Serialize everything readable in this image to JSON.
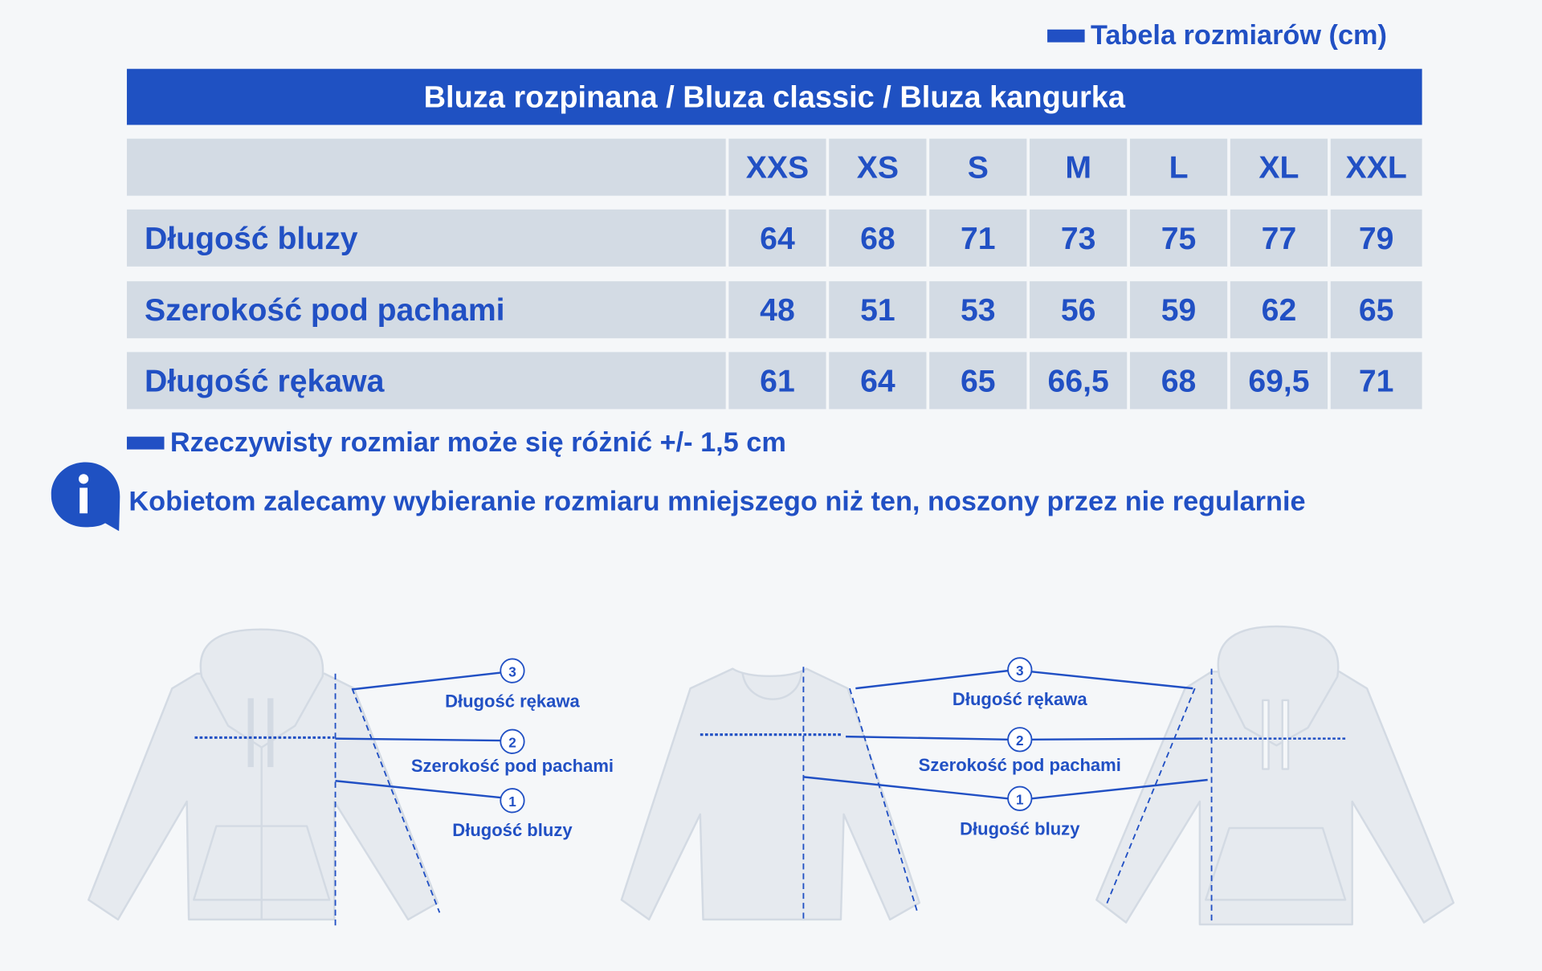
{
  "legend": {
    "title": "Tabela rozmiarów (cm)"
  },
  "header": {
    "title": "Bluza rozpinana / Bluza classic / Bluza kangurka"
  },
  "table": {
    "sizes": [
      "XXS",
      "XS",
      "S",
      "M",
      "L",
      "XL",
      "XXL"
    ],
    "rows": [
      {
        "label": "Długość bluzy",
        "values": [
          "64",
          "68",
          "71",
          "73",
          "75",
          "77",
          "79"
        ]
      },
      {
        "label": "Szerokość pod pachami",
        "values": [
          "48",
          "51",
          "53",
          "56",
          "59",
          "62",
          "65"
        ]
      },
      {
        "label": "Długość rękawa",
        "values": [
          "61",
          "64",
          "65",
          "66,5",
          "68",
          "69,5",
          "71"
        ]
      }
    ]
  },
  "note": "Rzeczywisty rozmiar może się różnić +/- 1,5 cm",
  "info": {
    "icon": "info-icon",
    "text": "Kobietom zalecamy wybieranie rozmiaru mniejszego niż ten, noszony przez nie regularnie"
  },
  "diagram_left": {
    "m3": "Długość rękawa",
    "m2": "Szerokość pod pachami",
    "m1": "Długość bluzy",
    "n3": "3",
    "n2": "2",
    "n1": "1"
  },
  "diagram_center": {
    "m3": "Długość rękawa",
    "m2": "Szerokość pod pachami",
    "m1": "Długość bluzy",
    "n3": "3",
    "n2": "2",
    "n1": "1"
  },
  "colors": {
    "accent": "#1f51c2",
    "cell_bg": "#d3dbe4",
    "page_bg": "#f5f7f9",
    "garment": "#e6eaef"
  }
}
